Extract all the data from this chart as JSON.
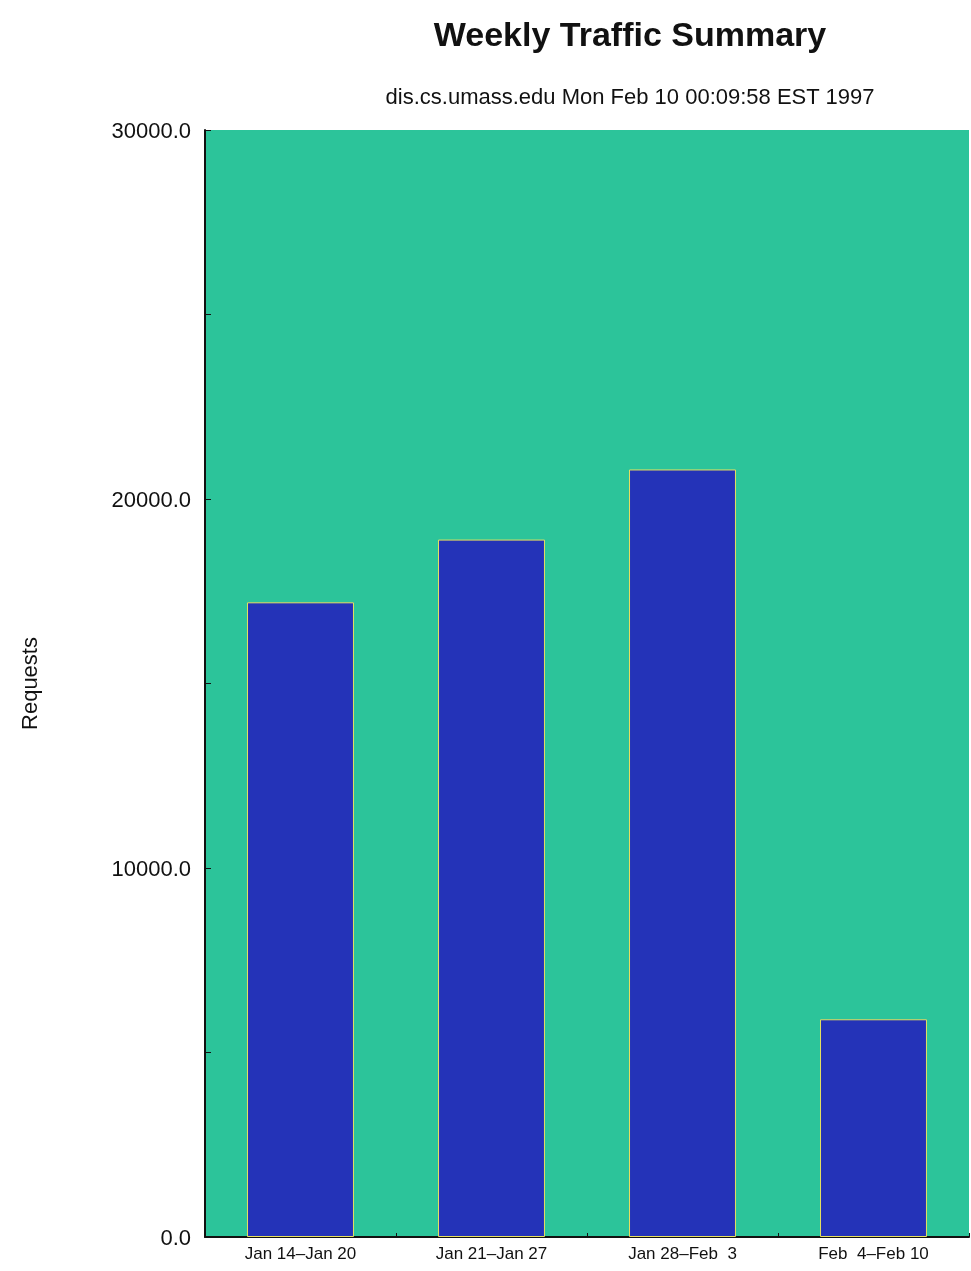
{
  "chart_data": {
    "type": "bar",
    "title": "Weekly Traffic Summary",
    "subtitle": "dis.cs.umass.edu Mon Feb 10 00:09:58 EST 1997",
    "ylabel": "Requests",
    "categories": [
      "Jan 14–Jan 20",
      "Jan 21–Jan 27",
      "Jan 28–Feb  3",
      "Feb  4–Feb 10"
    ],
    "values": [
      17200,
      18900,
      20800,
      5900
    ],
    "color": "#2433b8",
    "ylim": [
      0,
      30000
    ],
    "yticks": [
      {
        "value": 0,
        "label": "0.0"
      },
      {
        "value": 5000,
        "label": null
      },
      {
        "value": 10000,
        "label": "10000.0"
      },
      {
        "value": 15000,
        "label": null
      },
      {
        "value": 20000,
        "label": "20000.0"
      },
      {
        "value": 25000,
        "label": null
      },
      {
        "value": 30000,
        "label": "30000.0"
      }
    ],
    "grid": false
  }
}
